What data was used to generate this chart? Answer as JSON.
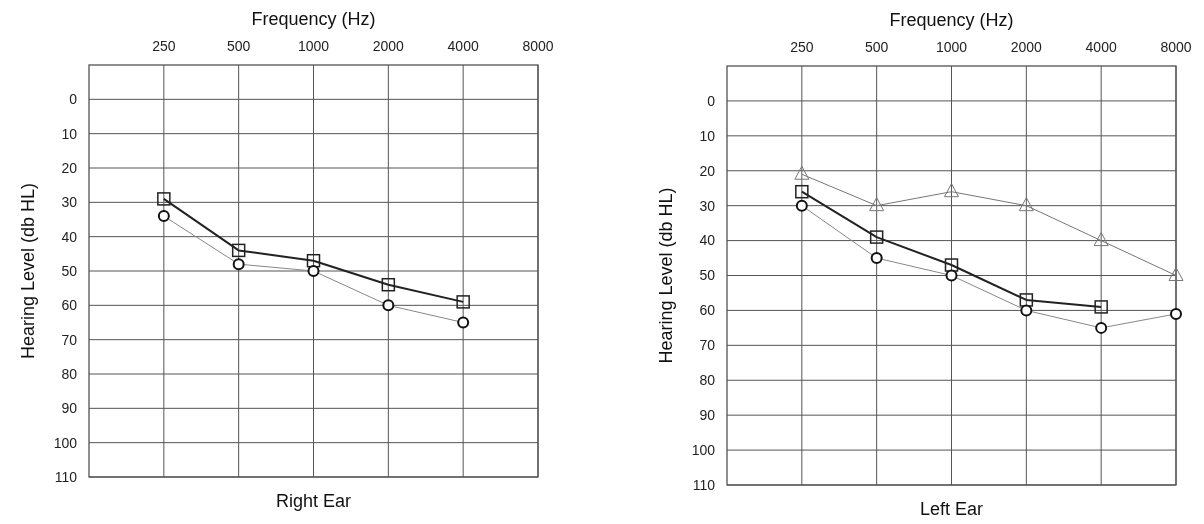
{
  "chart_data": [
    {
      "type": "line",
      "title": "Right Ear",
      "xlabel": "Frequency (Hz)",
      "ylabel": "Hearing Level (db HL)",
      "log": "x",
      "grid": true,
      "xlim": [
        125,
        8000
      ],
      "xticks": [
        250,
        500,
        1000,
        2000,
        4000,
        8000
      ],
      "ylim": [
        110,
        -10
      ],
      "yticks": [
        0,
        10,
        20,
        30,
        40,
        50,
        60,
        70,
        80,
        90,
        100,
        110
      ],
      "x": [
        250,
        500,
        1000,
        2000,
        4000
      ],
      "series": [
        {
          "color": "#222222",
          "marker": "square",
          "values": [
            29,
            44,
            47,
            54,
            59
          ]
        },
        {
          "color": "#111111",
          "marker": "circle",
          "values": [
            34,
            48,
            50,
            60,
            65
          ]
        }
      ]
    },
    {
      "type": "line",
      "title": "Left Ear",
      "xlabel": "Frequency (Hz)",
      "ylabel": "Hearing Level (db HL)",
      "log": "x",
      "grid": true,
      "xlim": [
        125,
        8000
      ],
      "xticks": [
        250,
        500,
        1000,
        2000,
        4000,
        8000
      ],
      "ylim": [
        110,
        -10
      ],
      "yticks": [
        0,
        10,
        20,
        30,
        40,
        50,
        60,
        70,
        80,
        90,
        100,
        110
      ],
      "x": [
        250,
        500,
        1000,
        2000,
        4000,
        8000
      ],
      "series": [
        {
          "color": "#777777",
          "marker": "triangle",
          "values": [
            21,
            30,
            26,
            30,
            40,
            50
          ]
        },
        {
          "color": "#222222",
          "marker": "square",
          "values": [
            26,
            39,
            47,
            57,
            59,
            null
          ]
        },
        {
          "color": "#111111",
          "marker": "circle",
          "values": [
            30,
            45,
            50,
            60,
            65,
            61
          ]
        }
      ]
    }
  ]
}
